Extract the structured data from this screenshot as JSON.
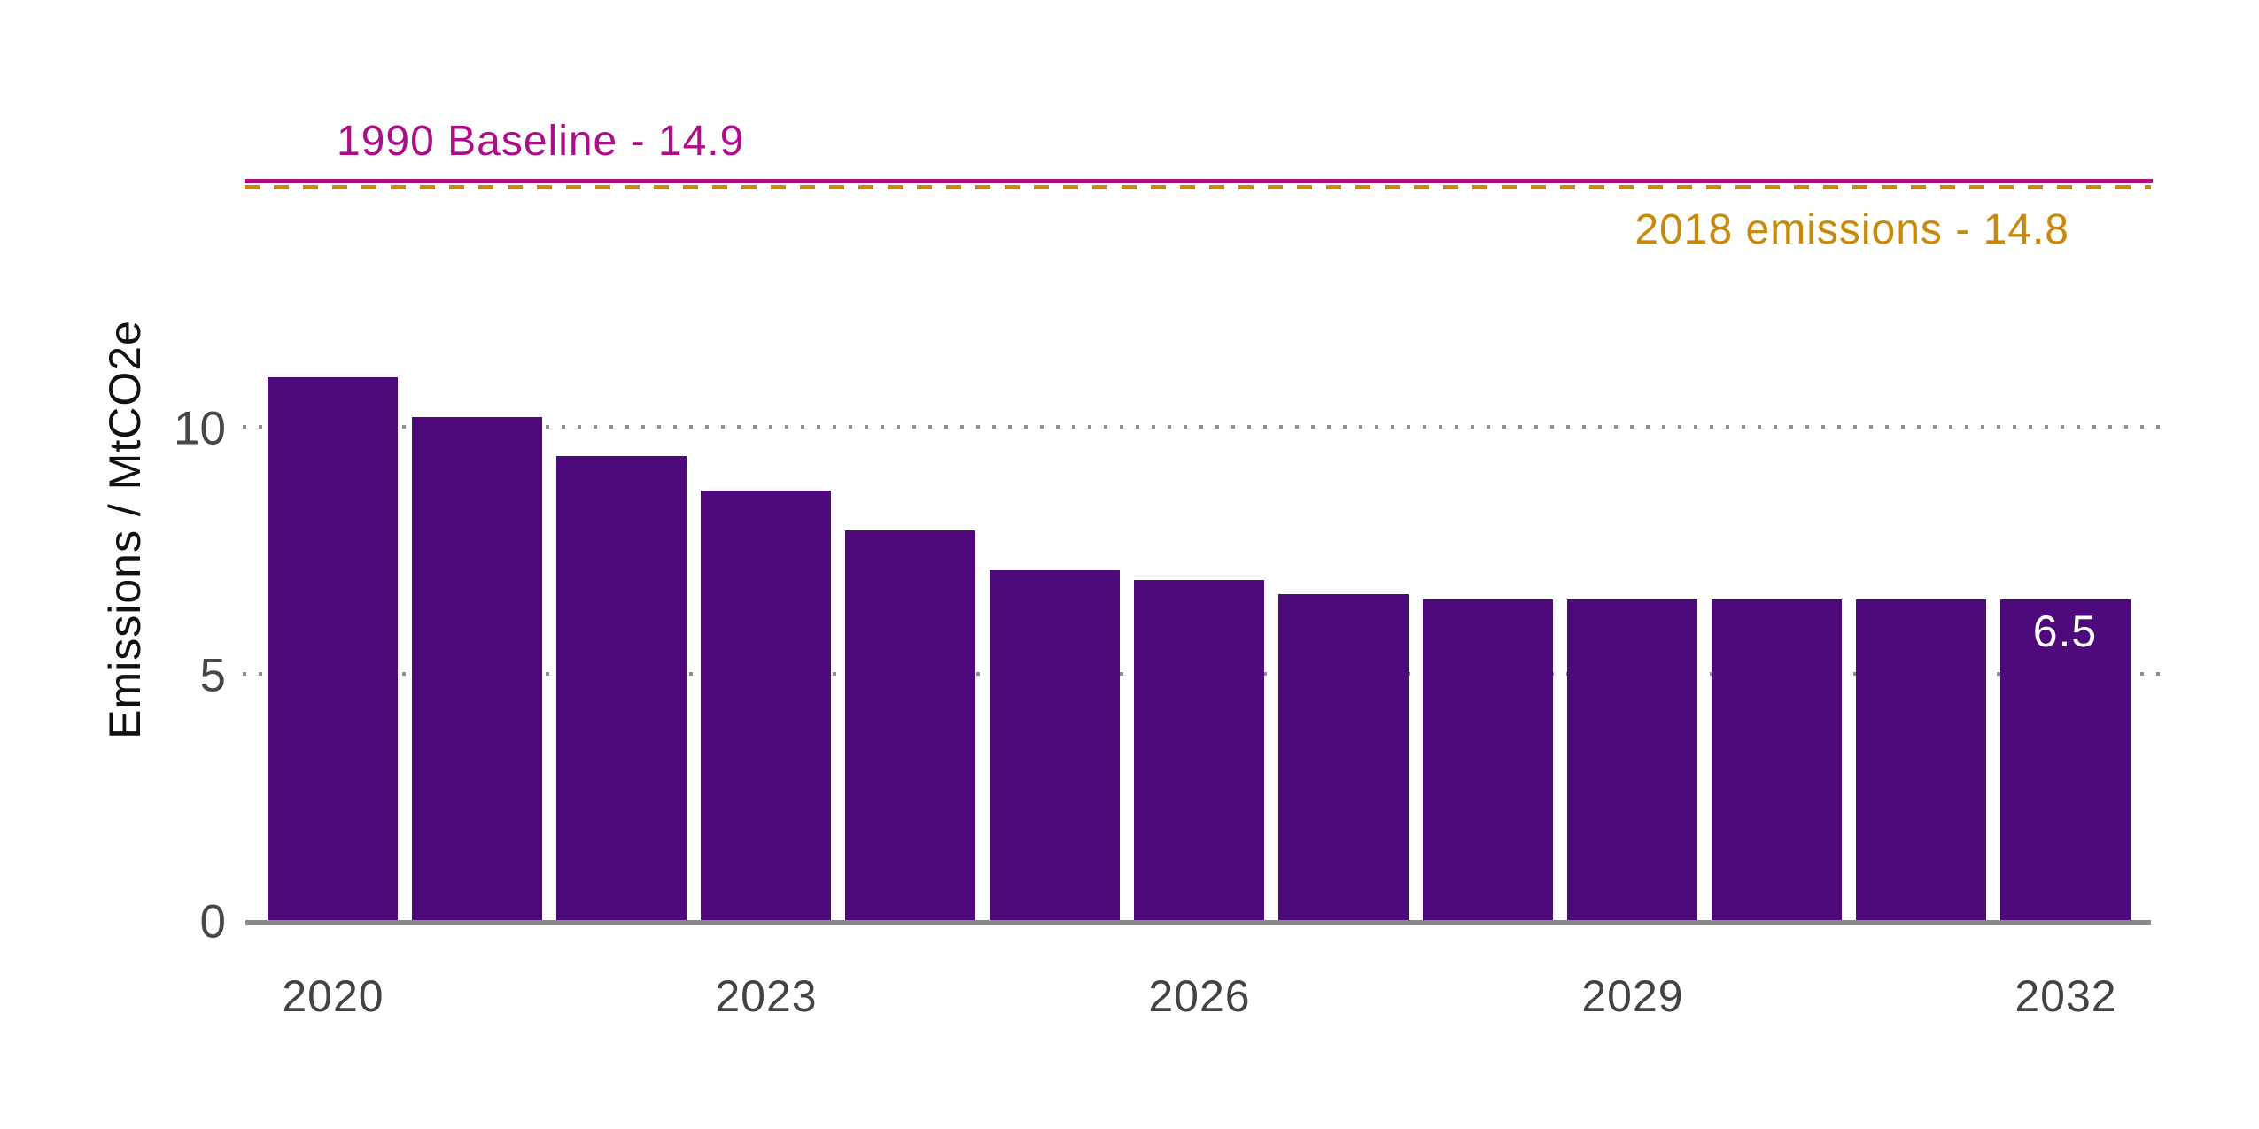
{
  "figure": {
    "background_color": "#ffffff",
    "y_axis": {
      "title": "Emissions / MtCO2e",
      "ticks": [
        {
          "label": "0",
          "value": 0
        },
        {
          "label": "5",
          "value": 5
        },
        {
          "label": "10",
          "value": 10
        }
      ]
    },
    "x_axis": {
      "ticks": [
        {
          "label": "2020",
          "bar_index": 0
        },
        {
          "label": "2023",
          "bar_index": 3
        },
        {
          "label": "2026",
          "bar_index": 6
        },
        {
          "label": "2029",
          "bar_index": 9
        },
        {
          "label": "2032",
          "bar_index": 12
        }
      ]
    },
    "reference_lines": [
      {
        "id": "baseline-1990",
        "label": "1990 Baseline - 14.9",
        "value": 14.9,
        "color": "#ad0e87",
        "style": "solid"
      },
      {
        "id": "emissions-2018",
        "label": "2018 emissions - 14.8",
        "value": 14.8,
        "color": "#c9890c",
        "style": "dashed"
      }
    ],
    "bar_annotation": {
      "text": "6.5",
      "bar_index": 12,
      "color": "#ffffff"
    },
    "colors": {
      "bar": "#4e0a7c",
      "axis_line": "#8a8a8a",
      "gridline": "#8f8f8f",
      "tick_text": "#474747"
    }
  },
  "chart_data": {
    "type": "bar",
    "x": [
      2020,
      2021,
      2022,
      2023,
      2024,
      2025,
      2026,
      2027,
      2028,
      2029,
      2030,
      2031,
      2032
    ],
    "values": [
      11.0,
      10.2,
      9.4,
      8.7,
      7.9,
      7.1,
      6.9,
      6.6,
      6.5,
      6.5,
      6.5,
      6.5,
      6.5
    ],
    "title": "",
    "xlabel": "",
    "ylabel": "Emissions / MtCO2e",
    "ylim": [
      0,
      15.5
    ],
    "y_gridlines_at": [
      5,
      10
    ],
    "grid_style": "dotted horizontal",
    "legend": "none",
    "reference_lines": [
      {
        "label": "1990 Baseline - 14.9",
        "value": 14.9
      },
      {
        "label": "2018 emissions - 14.8",
        "value": 14.8
      }
    ],
    "data_labels": [
      {
        "x": 2032,
        "text": "6.5"
      }
    ]
  }
}
